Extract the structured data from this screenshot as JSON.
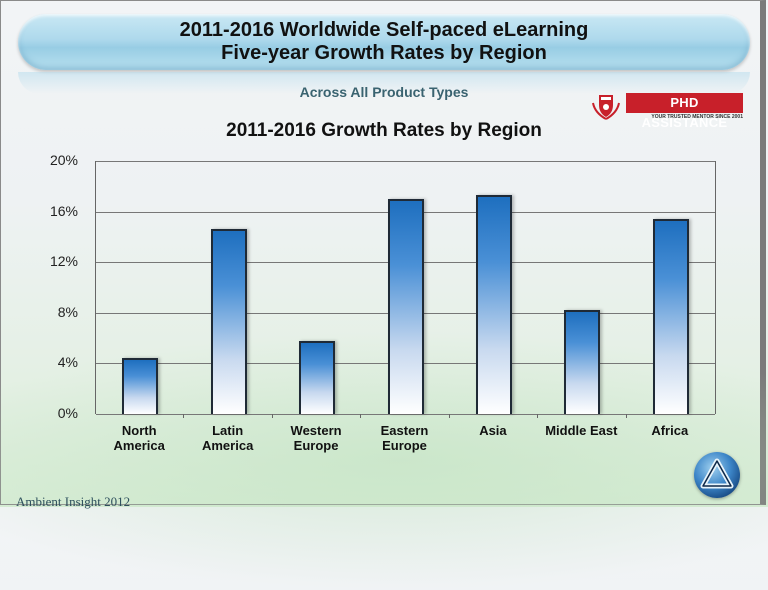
{
  "header": {
    "title_line1": "2011-2016 Worldwide Self-paced eLearning",
    "title_line2": "Five-year Growth Rates by Region",
    "subtitle": "Across  All Product Types"
  },
  "watermark": {
    "brand": "PHD ASSISTANCE",
    "tagline": "YOUR TRUSTED MENTOR SINCE 2001"
  },
  "footer": {
    "source": "Ambient Insight  2012"
  },
  "colors": {
    "bar_top": "#1e6fbf",
    "bar_bottom": "#ffffff",
    "title_pill": "#aed9ec",
    "brand_red": "#c8202a"
  },
  "chart_data": {
    "type": "bar",
    "title": "2011-2016 Growth Rates by Region",
    "xlabel": "",
    "ylabel": "",
    "categories": [
      "North America",
      "Latin America",
      "Western Europe",
      "Eastern Europe",
      "Asia",
      "Middle East",
      "Africa"
    ],
    "category_lines": [
      [
        "North",
        "America"
      ],
      [
        "Latin",
        "America"
      ],
      [
        "Western",
        "Europe"
      ],
      [
        "Eastern",
        "Europe"
      ],
      [
        "Asia",
        ""
      ],
      [
        "Middle East",
        ""
      ],
      [
        "Africa",
        ""
      ]
    ],
    "values": [
      4.4,
      14.6,
      5.8,
      17.0,
      17.3,
      8.2,
      15.4
    ],
    "unit": "%",
    "ylim": [
      0,
      20
    ],
    "yticks": [
      0,
      4,
      8,
      12,
      16,
      20
    ],
    "ytick_labels": [
      "0%",
      "4%",
      "8%",
      "12%",
      "16%",
      "20%"
    ],
    "grid": true,
    "legend": null
  }
}
